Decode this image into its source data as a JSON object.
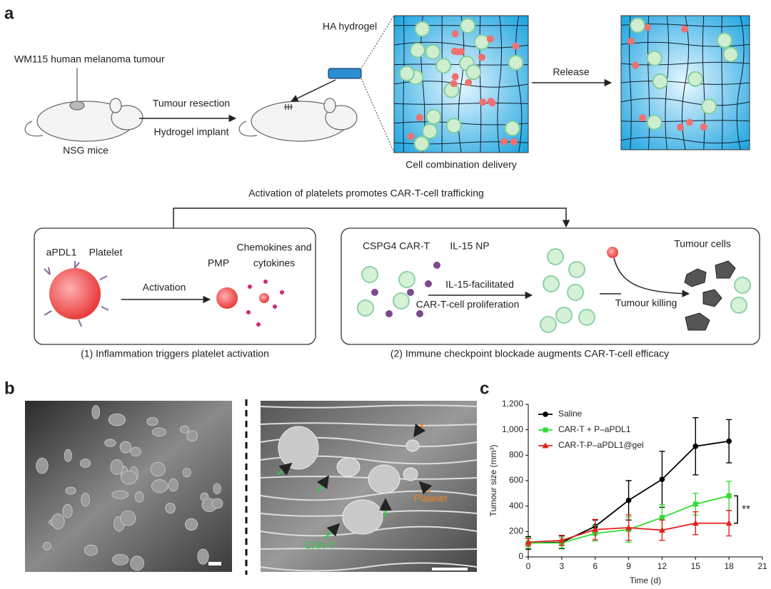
{
  "panel_labels": [
    "a",
    "b",
    "c"
  ],
  "panel_a": {
    "tumour_label": "WM115 human melanoma tumour",
    "mice_label": "NSG mice",
    "step_top": "Tumour resection",
    "step_bottom": "Hydrogel implant",
    "hydrogel_label": "HA hydrogel",
    "delivery_label": "Cell combination delivery",
    "release_label": "Release",
    "trafficking_label": "Activation of platelets promotes CAR-T-cell trafficking",
    "box1": {
      "apdl1": "aPDL1",
      "platelet": "Platelet",
      "pmp": "PMP",
      "chemokines": [
        "Chemokines and",
        "cytokines"
      ],
      "activation": "Activation",
      "caption": "(1) Inflammation triggers platelet activation"
    },
    "box2": {
      "cart": "CSPG4 CAR-T",
      "np": "IL-15 NP",
      "step": [
        "IL-15-facilitated",
        "CAR-T-cell proliferation"
      ],
      "killing": "Tumour killing",
      "tumour_cells": "Tumour cells",
      "caption": "(2) Immune checkpoint blockade augments CAR-T-cell efficacy"
    }
  },
  "panel_b": {
    "cart_label": "CAR-T",
    "platelet_label": "Platelet"
  },
  "chart_data": {
    "type": "line",
    "xlabel": "Time (d)",
    "ylabel": "Tumour size (mm³)",
    "x": [
      0,
      3,
      6,
      9,
      12,
      15,
      18
    ],
    "series": [
      {
        "name": "Saline",
        "color": "#000000",
        "marker": "circle",
        "values": [
          110,
          115,
          240,
          445,
          610,
          870,
          910
        ],
        "errors": [
          50,
          50,
          50,
          155,
          220,
          225,
          170
        ]
      },
      {
        "name": "CAR-T + P–aPDL1",
        "color": "#33dd33",
        "marker": "square",
        "values": [
          110,
          110,
          185,
          215,
          310,
          415,
          480
        ],
        "errors": [
          40,
          40,
          60,
          100,
          100,
          85,
          115
        ]
      },
      {
        "name": "CAR-T-P–aPDL1@gel",
        "color": "#e02020",
        "marker": "triangle",
        "values": [
          115,
          130,
          215,
          230,
          210,
          265,
          265
        ],
        "errors": [
          30,
          40,
          80,
          100,
          80,
          90,
          100
        ]
      }
    ],
    "xlim": [
      0,
      21
    ],
    "ylim": [
      0,
      1200
    ],
    "xticks": [
      0,
      3,
      6,
      9,
      12,
      15,
      18,
      21
    ],
    "yticks": [
      0,
      200,
      400,
      600,
      800,
      {
        "value": 1000,
        "label": "1,000"
      },
      {
        "value": 1200,
        "label": "1,200"
      }
    ],
    "legend": "upper left",
    "annotation": "**"
  }
}
